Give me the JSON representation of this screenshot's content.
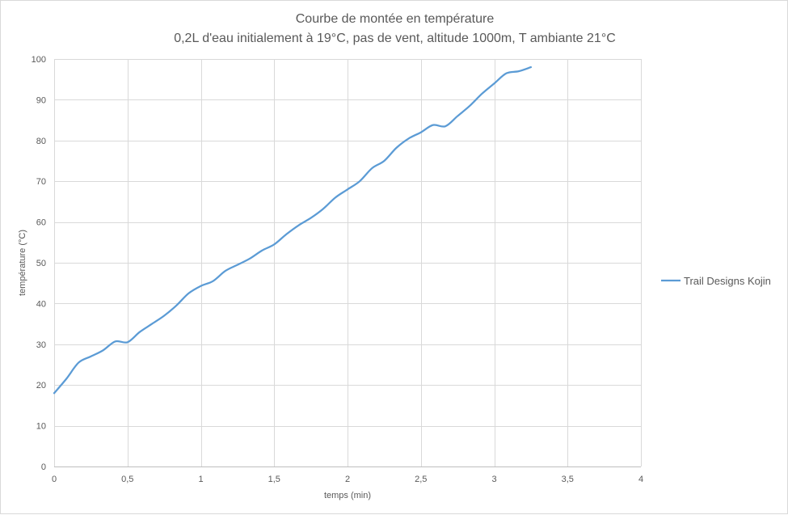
{
  "chart_data": {
    "type": "line",
    "title": "Courbe de montée en température",
    "subtitle": "0,2L d'eau initialement à 19°C, pas de vent, altitude 1000m, T ambiante 21°C",
    "xlabel": "temps (min)",
    "ylabel": "température (°C)",
    "xlim": [
      0,
      4
    ],
    "ylim": [
      0,
      100
    ],
    "x_ticks": [
      0,
      0.5,
      1,
      1.5,
      2,
      2.5,
      3,
      3.5,
      4
    ],
    "x_tick_labels": [
      "0",
      "0,5",
      "1",
      "1,5",
      "2",
      "2,5",
      "3",
      "3,5",
      "4"
    ],
    "y_ticks": [
      0,
      10,
      20,
      30,
      40,
      50,
      60,
      70,
      80,
      90,
      100
    ],
    "y_tick_labels": [
      "0",
      "10",
      "20",
      "30",
      "40",
      "50",
      "60",
      "70",
      "80",
      "90",
      "100"
    ],
    "grid": true,
    "legend_position": "right",
    "series": [
      {
        "name": "Trail Designs Kojin",
        "color": "#5b9bd5",
        "x": [
          0,
          0.083,
          0.167,
          0.25,
          0.333,
          0.417,
          0.5,
          0.583,
          0.667,
          0.75,
          0.833,
          0.917,
          1,
          1.083,
          1.167,
          1.25,
          1.333,
          1.417,
          1.5,
          1.583,
          1.667,
          1.75,
          1.833,
          1.917,
          2,
          2.083,
          2.167,
          2.25,
          2.333,
          2.417,
          2.5,
          2.583,
          2.667,
          2.75,
          2.833,
          2.917,
          3,
          3.083,
          3.167,
          3.25
        ],
        "y": [
          18,
          21.5,
          25.5,
          27,
          28.5,
          30.7,
          30.5,
          33,
          35,
          37,
          39.5,
          42.5,
          44.3,
          45.5,
          48,
          49.5,
          51,
          53,
          54.5,
          57,
          59.2,
          61,
          63.2,
          66,
          68,
          70,
          73.2,
          75,
          78.2,
          80.5,
          82,
          83.8,
          83.5,
          86,
          88.5,
          91.5,
          94,
          96.5,
          97,
          98
        ]
      }
    ]
  }
}
